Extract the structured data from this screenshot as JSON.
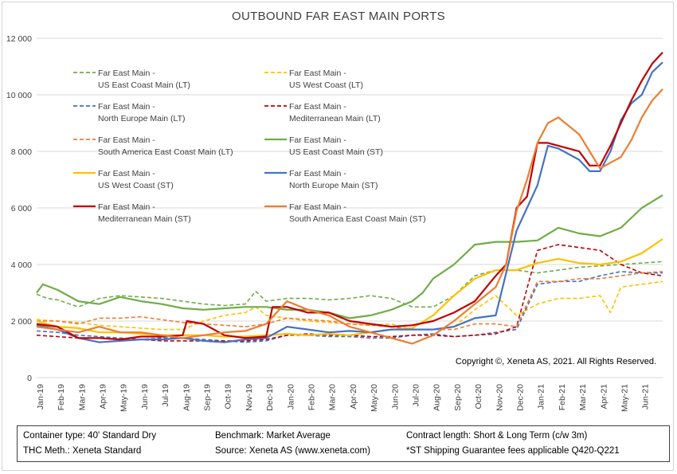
{
  "chart_data": {
    "type": "line",
    "title": "OUTBOUND FAR EAST MAIN PORTS",
    "xlabel": "",
    "ylabel": "",
    "ylim": [
      0,
      12000
    ],
    "yticks": [
      0,
      2000,
      4000,
      6000,
      8000,
      10000,
      12000
    ],
    "ytick_labels": [
      "0",
      "2 000",
      "4 000",
      "6 000",
      "8 000",
      "10 000",
      "12 000"
    ],
    "x_tick_labels": [
      "Jan-19",
      "Feb-19",
      "Mar-19",
      "Apr-19",
      "May-19",
      "Jun-19",
      "Jul-19",
      "Aug-19",
      "Sep-19",
      "Oct-19",
      "Nov-19",
      "Dec-19",
      "Jan-20",
      "Feb-20",
      "Mar-20",
      "Apr-20",
      "May-20",
      "Jun-20",
      "Jul-20",
      "Aug-20",
      "Sep-20",
      "Oct-20",
      "Nov-20",
      "Dec-20",
      "Jan-21",
      "Feb-21",
      "Mar-21",
      "Apr-21",
      "May-21",
      "Jun-21"
    ],
    "x_range_months": [
      0,
      30
    ],
    "grid": "horizontal",
    "legend_position": "top-left",
    "copyright": "Copyright ©, Xeneta AS, 2021. All Rights Reserved.",
    "series": [
      {
        "name_line1": "Far East Main -",
        "name_line2": "US East Coast Main (LT)",
        "color": "#70AD47",
        "dashed": true,
        "x": [
          0,
          0.5,
          1,
          2,
          3,
          4,
          5,
          6,
          7,
          8,
          9,
          10,
          10.5,
          11,
          12,
          13,
          14,
          15,
          16,
          17,
          18,
          19,
          20,
          21,
          22,
          23,
          24,
          25,
          26,
          27,
          28,
          29,
          30
        ],
        "y": [
          2950,
          2800,
          2750,
          2500,
          2800,
          2900,
          2850,
          2800,
          2700,
          2600,
          2550,
          2600,
          3050,
          2700,
          2800,
          2800,
          2750,
          2800,
          2900,
          2800,
          2500,
          2500,
          2900,
          3600,
          3800,
          3800,
          3700,
          3800,
          3900,
          3950,
          4000,
          4050,
          4100
        ]
      },
      {
        "name_line1": "Far East Main -",
        "name_line2": "US West Coast (LT)",
        "color": "#FFC000",
        "dashed": true,
        "x": [
          0,
          1,
          2,
          3,
          4,
          5,
          6,
          7,
          8,
          9,
          10,
          10.5,
          11,
          12,
          13,
          14,
          15,
          16,
          17,
          18,
          19,
          20,
          21,
          22,
          23,
          24,
          25,
          26,
          27,
          27.5,
          28,
          29,
          30
        ],
        "y": [
          2050,
          2000,
          1950,
          1850,
          1800,
          1750,
          1700,
          1700,
          2000,
          2200,
          2300,
          2500,
          2200,
          2100,
          2000,
          1950,
          1900,
          1850,
          1900,
          1700,
          1700,
          1800,
          2400,
          2900,
          2200,
          2600,
          2800,
          2800,
          2900,
          2300,
          3200,
          3300,
          3400
        ]
      },
      {
        "name_line1": "Far East Main -",
        "name_line2": "North Europe Main (LT)",
        "color": "#4472C4",
        "dashed": true,
        "x": [
          0,
          1,
          2,
          3,
          4,
          5,
          6,
          7,
          8,
          9,
          10,
          11,
          12,
          13,
          14,
          15,
          16,
          17,
          18,
          19,
          20,
          21,
          22,
          23,
          24,
          25,
          26,
          27,
          28,
          29,
          30
        ],
        "y": [
          1650,
          1600,
          1500,
          1450,
          1400,
          1350,
          1400,
          1400,
          1350,
          1300,
          1250,
          1300,
          1500,
          1500,
          1450,
          1450,
          1400,
          1400,
          1500,
          1550,
          1450,
          1500,
          1600,
          1700,
          3300,
          3400,
          3400,
          3600,
          3750,
          3700,
          3700
        ]
      },
      {
        "name_line1": "Far East Main -",
        "name_line2": "Mediterranean Main (LT)",
        "color": "#C00000",
        "dashed": true,
        "x": [
          0,
          1,
          2,
          3,
          4,
          5,
          6,
          7,
          8,
          9,
          10,
          11,
          12,
          13,
          14,
          15,
          16,
          17,
          18,
          19,
          20,
          21,
          22,
          23,
          24,
          25,
          26,
          27,
          28,
          29,
          30
        ],
        "y": [
          1500,
          1450,
          1400,
          1400,
          1350,
          1350,
          1300,
          1300,
          1300,
          1300,
          1300,
          1350,
          1500,
          1550,
          1500,
          1500,
          1450,
          1450,
          1500,
          1500,
          1450,
          1500,
          1550,
          1800,
          4500,
          4700,
          4600,
          4500,
          4000,
          3700,
          3600
        ]
      },
      {
        "name_line1": "Far East Main -",
        "name_line2": "South America East Coast Main (LT)",
        "color": "#ED7D31",
        "dashed": true,
        "x": [
          0,
          1,
          2,
          3,
          4,
          5,
          6,
          7,
          8,
          9,
          10,
          11,
          12,
          13,
          14,
          15,
          16,
          17,
          18,
          19,
          20,
          21,
          22,
          23,
          24,
          25,
          26,
          27,
          28,
          29,
          30
        ],
        "y": [
          2000,
          2000,
          1900,
          2100,
          2100,
          2150,
          2050,
          1950,
          1900,
          1850,
          1800,
          1900,
          2100,
          2050,
          2000,
          1900,
          1850,
          1800,
          1700,
          1700,
          1700,
          1900,
          1900,
          1800,
          3400,
          3400,
          3500,
          3500,
          3600,
          3700,
          3750
        ]
      },
      {
        "name_line1": "Far East Main -",
        "name_line2": "US East Coast Main (ST)",
        "color": "#70AD47",
        "dashed": false,
        "x": [
          0,
          0.3,
          1,
          2,
          3,
          4,
          5,
          6,
          7,
          8,
          9,
          10,
          11,
          12,
          13,
          14,
          15,
          16,
          17,
          18,
          18.5,
          19,
          20,
          21,
          22,
          23,
          24,
          25,
          26,
          27,
          28,
          29,
          30
        ],
        "y": [
          3000,
          3300,
          3100,
          2700,
          2600,
          2850,
          2700,
          2600,
          2450,
          2400,
          2450,
          2500,
          2500,
          2400,
          2400,
          2300,
          2100,
          2200,
          2400,
          2700,
          3000,
          3500,
          4000,
          4700,
          4800,
          4800,
          4850,
          5300,
          5100,
          5000,
          5300,
          6000,
          6450
        ]
      },
      {
        "name_line1": "Far East Main -",
        "name_line2": "US West Coast (ST)",
        "color": "#FFC000",
        "dashed": false,
        "x": [
          0,
          1,
          2,
          3,
          4,
          5,
          6,
          7,
          8,
          9,
          10,
          11,
          12,
          13,
          14,
          15,
          16,
          17,
          18,
          19,
          20,
          21,
          22,
          23,
          24,
          25,
          26,
          27,
          28,
          29,
          30
        ],
        "y": [
          2000,
          1800,
          1750,
          1600,
          1600,
          1550,
          1500,
          1500,
          1500,
          1450,
          1450,
          1500,
          1550,
          1500,
          1550,
          1500,
          1600,
          1700,
          1750,
          2200,
          2900,
          3500,
          3800,
          3800,
          4050,
          4200,
          4050,
          4000,
          4100,
          4400,
          4900
        ]
      },
      {
        "name_line1": "Far East Main -",
        "name_line2": "North Europe Main (ST)",
        "color": "#4472C4",
        "dashed": false,
        "x": [
          0,
          1,
          2,
          3,
          4,
          5,
          6,
          7,
          8,
          9,
          10,
          11,
          12,
          13,
          14,
          15,
          16,
          17,
          18,
          19,
          20,
          21,
          22,
          23,
          23.5,
          24,
          24.5,
          25,
          26,
          26.5,
          27,
          27.5,
          28,
          28.5,
          29,
          29.5,
          30
        ],
        "y": [
          1850,
          1700,
          1400,
          1250,
          1300,
          1350,
          1350,
          1400,
          1300,
          1250,
          1350,
          1400,
          1800,
          1700,
          1600,
          1650,
          1600,
          1700,
          1700,
          1700,
          1800,
          2100,
          2200,
          5200,
          6000,
          6800,
          8200,
          8100,
          7700,
          7300,
          7300,
          8000,
          9100,
          9700,
          10000,
          10800,
          11150
        ]
      },
      {
        "name_line1": "Far East Main -",
        "name_line2": "Mediterranean Main (ST)",
        "color": "#C00000",
        "dashed": false,
        "x": [
          0,
          1,
          2,
          3,
          4,
          5,
          6,
          7,
          7.2,
          8,
          9,
          10,
          11,
          11.3,
          12,
          13,
          14,
          15,
          16,
          17,
          18,
          19,
          20,
          21,
          22,
          22.5,
          23,
          23.5,
          24,
          24.5,
          25,
          26,
          26.5,
          27,
          27.5,
          28,
          28.5,
          29,
          29.5,
          30
        ],
        "y": [
          1900,
          1800,
          1400,
          1400,
          1350,
          1450,
          1450,
          1500,
          2000,
          1900,
          1500,
          1400,
          1450,
          2500,
          2500,
          2300,
          2300,
          2000,
          1900,
          1800,
          1850,
          2000,
          2300,
          2700,
          3600,
          4000,
          6000,
          6400,
          8300,
          8300,
          8200,
          8000,
          7500,
          7500,
          8200,
          9000,
          9800,
          10500,
          11100,
          11500
        ]
      },
      {
        "name_line1": "Far East Main -",
        "name_line2": "South America East Coast Main (ST)",
        "color": "#ED7D31",
        "dashed": false,
        "x": [
          0,
          1,
          2,
          3,
          4,
          5,
          6,
          7,
          8,
          9,
          10,
          11,
          12,
          13,
          14,
          15,
          16,
          17,
          18,
          19,
          20,
          21,
          22,
          22.5,
          23,
          23.5,
          24,
          24.5,
          25,
          26,
          26.5,
          27,
          27.5,
          28,
          28.5,
          29,
          29.5,
          30
        ],
        "y": [
          1800,
          1700,
          1600,
          1800,
          1600,
          1600,
          1500,
          1400,
          1500,
          1600,
          1650,
          1900,
          2700,
          2400,
          2200,
          1800,
          1600,
          1400,
          1200,
          1500,
          2000,
          2600,
          3200,
          4000,
          5900,
          7000,
          8300,
          9000,
          9200,
          8600,
          8000,
          7400,
          7600,
          7800,
          8400,
          9200,
          9800,
          10200
        ]
      }
    ]
  },
  "footer": {
    "container_type": "Container type: 40' Standard Dry",
    "benchmark": "Benchmark: Market Average",
    "contract_length": "Contract length: Short & Long Term (c/w 3m)",
    "thc_meth": "THC Meth.: Xeneta Standard",
    "source": "Source: Xeneta AS (www.xeneta.com)",
    "shipping_note": "*ST Shipping Guarantee fees applicable Q420-Q221"
  }
}
